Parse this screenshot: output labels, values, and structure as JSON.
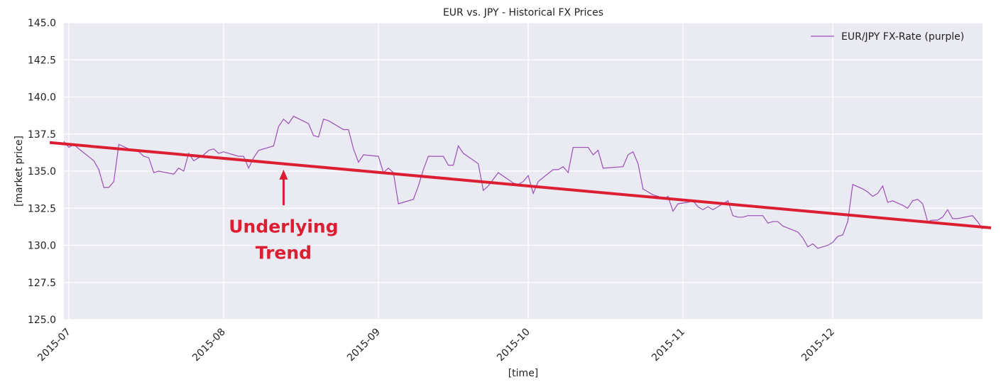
{
  "chart_data": {
    "type": "line",
    "title": "EUR vs. JPY - Historical FX Prices",
    "xlabel": "[time]",
    "ylabel": "[market price]",
    "xlim": [
      "2015-06-30",
      "2015-12-31"
    ],
    "ylim": [
      125.0,
      145.0
    ],
    "yticks": [
      125.0,
      127.5,
      130.0,
      132.5,
      135.0,
      137.5,
      140.0,
      142.5,
      145.0
    ],
    "ytick_labels": [
      "125.0",
      "127.5",
      "130.0",
      "132.5",
      "135.0",
      "137.5",
      "140.0",
      "142.5",
      "145.0"
    ],
    "xticks": [
      "2015-07-01",
      "2015-08-01",
      "2015-09-01",
      "2015-10-01",
      "2015-11-01",
      "2015-12-01"
    ],
    "xtick_labels": [
      "2015-07",
      "2015-08",
      "2015-09",
      "2015-10",
      "2015-11",
      "2015-12"
    ],
    "grid": true,
    "legend_position": "top-right",
    "colors": {
      "series": "#9b4fb6",
      "trend": "#dc1e32",
      "plot_bg": "#eaeaf2",
      "grid": "#ffffff"
    },
    "series": [
      {
        "name": "EUR/JPY FX-Rate (purple)",
        "points": [
          [
            "2015-06-30",
            137.0
          ],
          [
            "2015-07-01",
            136.6
          ],
          [
            "2015-07-02",
            136.8
          ],
          [
            "2015-07-03",
            136.5
          ],
          [
            "2015-07-06",
            135.7
          ],
          [
            "2015-07-07",
            135.1
          ],
          [
            "2015-07-08",
            133.9
          ],
          [
            "2015-07-09",
            133.9
          ],
          [
            "2015-07-10",
            134.3
          ],
          [
            "2015-07-11",
            136.8
          ],
          [
            "2015-07-13",
            136.5
          ],
          [
            "2015-07-14",
            136.4
          ],
          [
            "2015-07-15",
            136.3
          ],
          [
            "2015-07-16",
            136.0
          ],
          [
            "2015-07-17",
            135.9
          ],
          [
            "2015-07-18",
            134.9
          ],
          [
            "2015-07-19",
            135.0
          ],
          [
            "2015-07-22",
            134.8
          ],
          [
            "2015-07-23",
            135.2
          ],
          [
            "2015-07-24",
            135.0
          ],
          [
            "2015-07-25",
            136.2
          ],
          [
            "2015-07-26",
            135.7
          ],
          [
            "2015-07-27",
            135.9
          ],
          [
            "2015-07-28",
            136.1
          ],
          [
            "2015-07-29",
            136.4
          ],
          [
            "2015-07-30",
            136.5
          ],
          [
            "2015-07-31",
            136.2
          ],
          [
            "2015-08-01",
            136.3
          ],
          [
            "2015-08-02",
            136.2
          ],
          [
            "2015-08-03",
            136.1
          ],
          [
            "2015-08-04",
            136.0
          ],
          [
            "2015-08-05",
            136.0
          ],
          [
            "2015-08-06",
            135.2
          ],
          [
            "2015-08-07",
            135.9
          ],
          [
            "2015-08-08",
            136.4
          ],
          [
            "2015-08-11",
            136.7
          ],
          [
            "2015-08-12",
            138.0
          ],
          [
            "2015-08-13",
            138.5
          ],
          [
            "2015-08-14",
            138.2
          ],
          [
            "2015-08-15",
            138.7
          ],
          [
            "2015-08-18",
            138.2
          ],
          [
            "2015-08-19",
            137.4
          ],
          [
            "2015-08-20",
            137.3
          ],
          [
            "2015-08-21",
            138.5
          ],
          [
            "2015-08-22",
            138.4
          ],
          [
            "2015-08-25",
            137.8
          ],
          [
            "2015-08-26",
            137.8
          ],
          [
            "2015-08-27",
            136.5
          ],
          [
            "2015-08-28",
            135.6
          ],
          [
            "2015-08-29",
            136.1
          ],
          [
            "2015-09-01",
            136.0
          ],
          [
            "2015-09-02",
            134.9
          ],
          [
            "2015-09-03",
            135.2
          ],
          [
            "2015-09-04",
            134.9
          ],
          [
            "2015-09-05",
            132.8
          ],
          [
            "2015-09-08",
            133.1
          ],
          [
            "2015-09-09",
            134.0
          ],
          [
            "2015-09-10",
            135.1
          ],
          [
            "2015-09-11",
            136.0
          ],
          [
            "2015-09-14",
            136.0
          ],
          [
            "2015-09-15",
            135.4
          ],
          [
            "2015-09-16",
            135.4
          ],
          [
            "2015-09-17",
            136.7
          ],
          [
            "2015-09-18",
            136.2
          ],
          [
            "2015-09-21",
            135.5
          ],
          [
            "2015-09-22",
            133.7
          ],
          [
            "2015-09-23",
            134.0
          ],
          [
            "2015-09-25",
            134.9
          ],
          [
            "2015-09-28",
            134.2
          ],
          [
            "2015-09-29",
            134.1
          ],
          [
            "2015-09-30",
            134.3
          ],
          [
            "2015-10-01",
            134.7
          ],
          [
            "2015-10-02",
            133.5
          ],
          [
            "2015-10-03",
            134.3
          ],
          [
            "2015-10-06",
            135.1
          ],
          [
            "2015-10-07",
            135.1
          ],
          [
            "2015-10-08",
            135.3
          ],
          [
            "2015-10-09",
            134.9
          ],
          [
            "2015-10-10",
            136.6
          ],
          [
            "2015-10-13",
            136.6
          ],
          [
            "2015-10-14",
            136.1
          ],
          [
            "2015-10-15",
            136.4
          ],
          [
            "2015-10-16",
            135.2
          ],
          [
            "2015-10-20",
            135.3
          ],
          [
            "2015-10-21",
            136.1
          ],
          [
            "2015-10-22",
            136.3
          ],
          [
            "2015-10-23",
            135.5
          ],
          [
            "2015-10-24",
            133.8
          ],
          [
            "2015-10-26",
            133.4
          ],
          [
            "2015-10-27",
            133.3
          ],
          [
            "2015-10-28",
            133.1
          ],
          [
            "2015-10-29",
            133.3
          ],
          [
            "2015-10-30",
            132.3
          ],
          [
            "2015-10-31",
            132.8
          ],
          [
            "2015-11-02",
            132.9
          ],
          [
            "2015-11-03",
            133.0
          ],
          [
            "2015-11-04",
            132.6
          ],
          [
            "2015-11-05",
            132.4
          ],
          [
            "2015-11-06",
            132.6
          ],
          [
            "2015-11-07",
            132.4
          ],
          [
            "2015-11-09",
            132.8
          ],
          [
            "2015-11-10",
            133.0
          ],
          [
            "2015-11-11",
            132.0
          ],
          [
            "2015-11-12",
            131.9
          ],
          [
            "2015-11-13",
            131.9
          ],
          [
            "2015-11-14",
            132.0
          ],
          [
            "2015-11-17",
            132.0
          ],
          [
            "2015-11-18",
            131.5
          ],
          [
            "2015-11-19",
            131.6
          ],
          [
            "2015-11-20",
            131.6
          ],
          [
            "2015-11-21",
            131.3
          ],
          [
            "2015-11-24",
            130.9
          ],
          [
            "2015-11-25",
            130.5
          ],
          [
            "2015-11-26",
            129.9
          ],
          [
            "2015-11-27",
            130.1
          ],
          [
            "2015-11-28",
            129.8
          ],
          [
            "2015-11-30",
            130.0
          ],
          [
            "2015-12-01",
            130.2
          ],
          [
            "2015-12-02",
            130.6
          ],
          [
            "2015-12-03",
            130.7
          ],
          [
            "2015-12-04",
            131.6
          ],
          [
            "2015-12-05",
            134.1
          ],
          [
            "2015-12-07",
            133.8
          ],
          [
            "2015-12-08",
            133.6
          ],
          [
            "2015-12-09",
            133.3
          ],
          [
            "2015-12-10",
            133.5
          ],
          [
            "2015-12-11",
            134.0
          ],
          [
            "2015-12-12",
            132.9
          ],
          [
            "2015-12-13",
            133.0
          ],
          [
            "2015-12-15",
            132.7
          ],
          [
            "2015-12-16",
            132.5
          ],
          [
            "2015-12-17",
            133.0
          ],
          [
            "2015-12-18",
            133.1
          ],
          [
            "2015-12-19",
            132.8
          ],
          [
            "2015-12-20",
            131.6
          ],
          [
            "2015-12-21",
            131.7
          ],
          [
            "2015-12-22",
            131.7
          ],
          [
            "2015-12-23",
            131.9
          ],
          [
            "2015-12-24",
            132.4
          ],
          [
            "2015-12-25",
            131.8
          ],
          [
            "2015-12-26",
            131.8
          ],
          [
            "2015-12-29",
            132.0
          ],
          [
            "2015-12-30",
            131.6
          ],
          [
            "2015-12-31",
            131.1
          ]
        ]
      }
    ],
    "trend_line": {
      "start": [
        "2015-06-30",
        136.9
      ],
      "end": [
        "2015-12-31",
        131.2
      ]
    },
    "annotation": {
      "lines": [
        "Underlying",
        "Trend"
      ],
      "arrow_target": [
        "2015-08-13",
        135.1
      ],
      "arrow_from": [
        "2015-08-13",
        132.7
      ],
      "text_at": [
        "2015-08-13",
        131.3
      ]
    }
  }
}
